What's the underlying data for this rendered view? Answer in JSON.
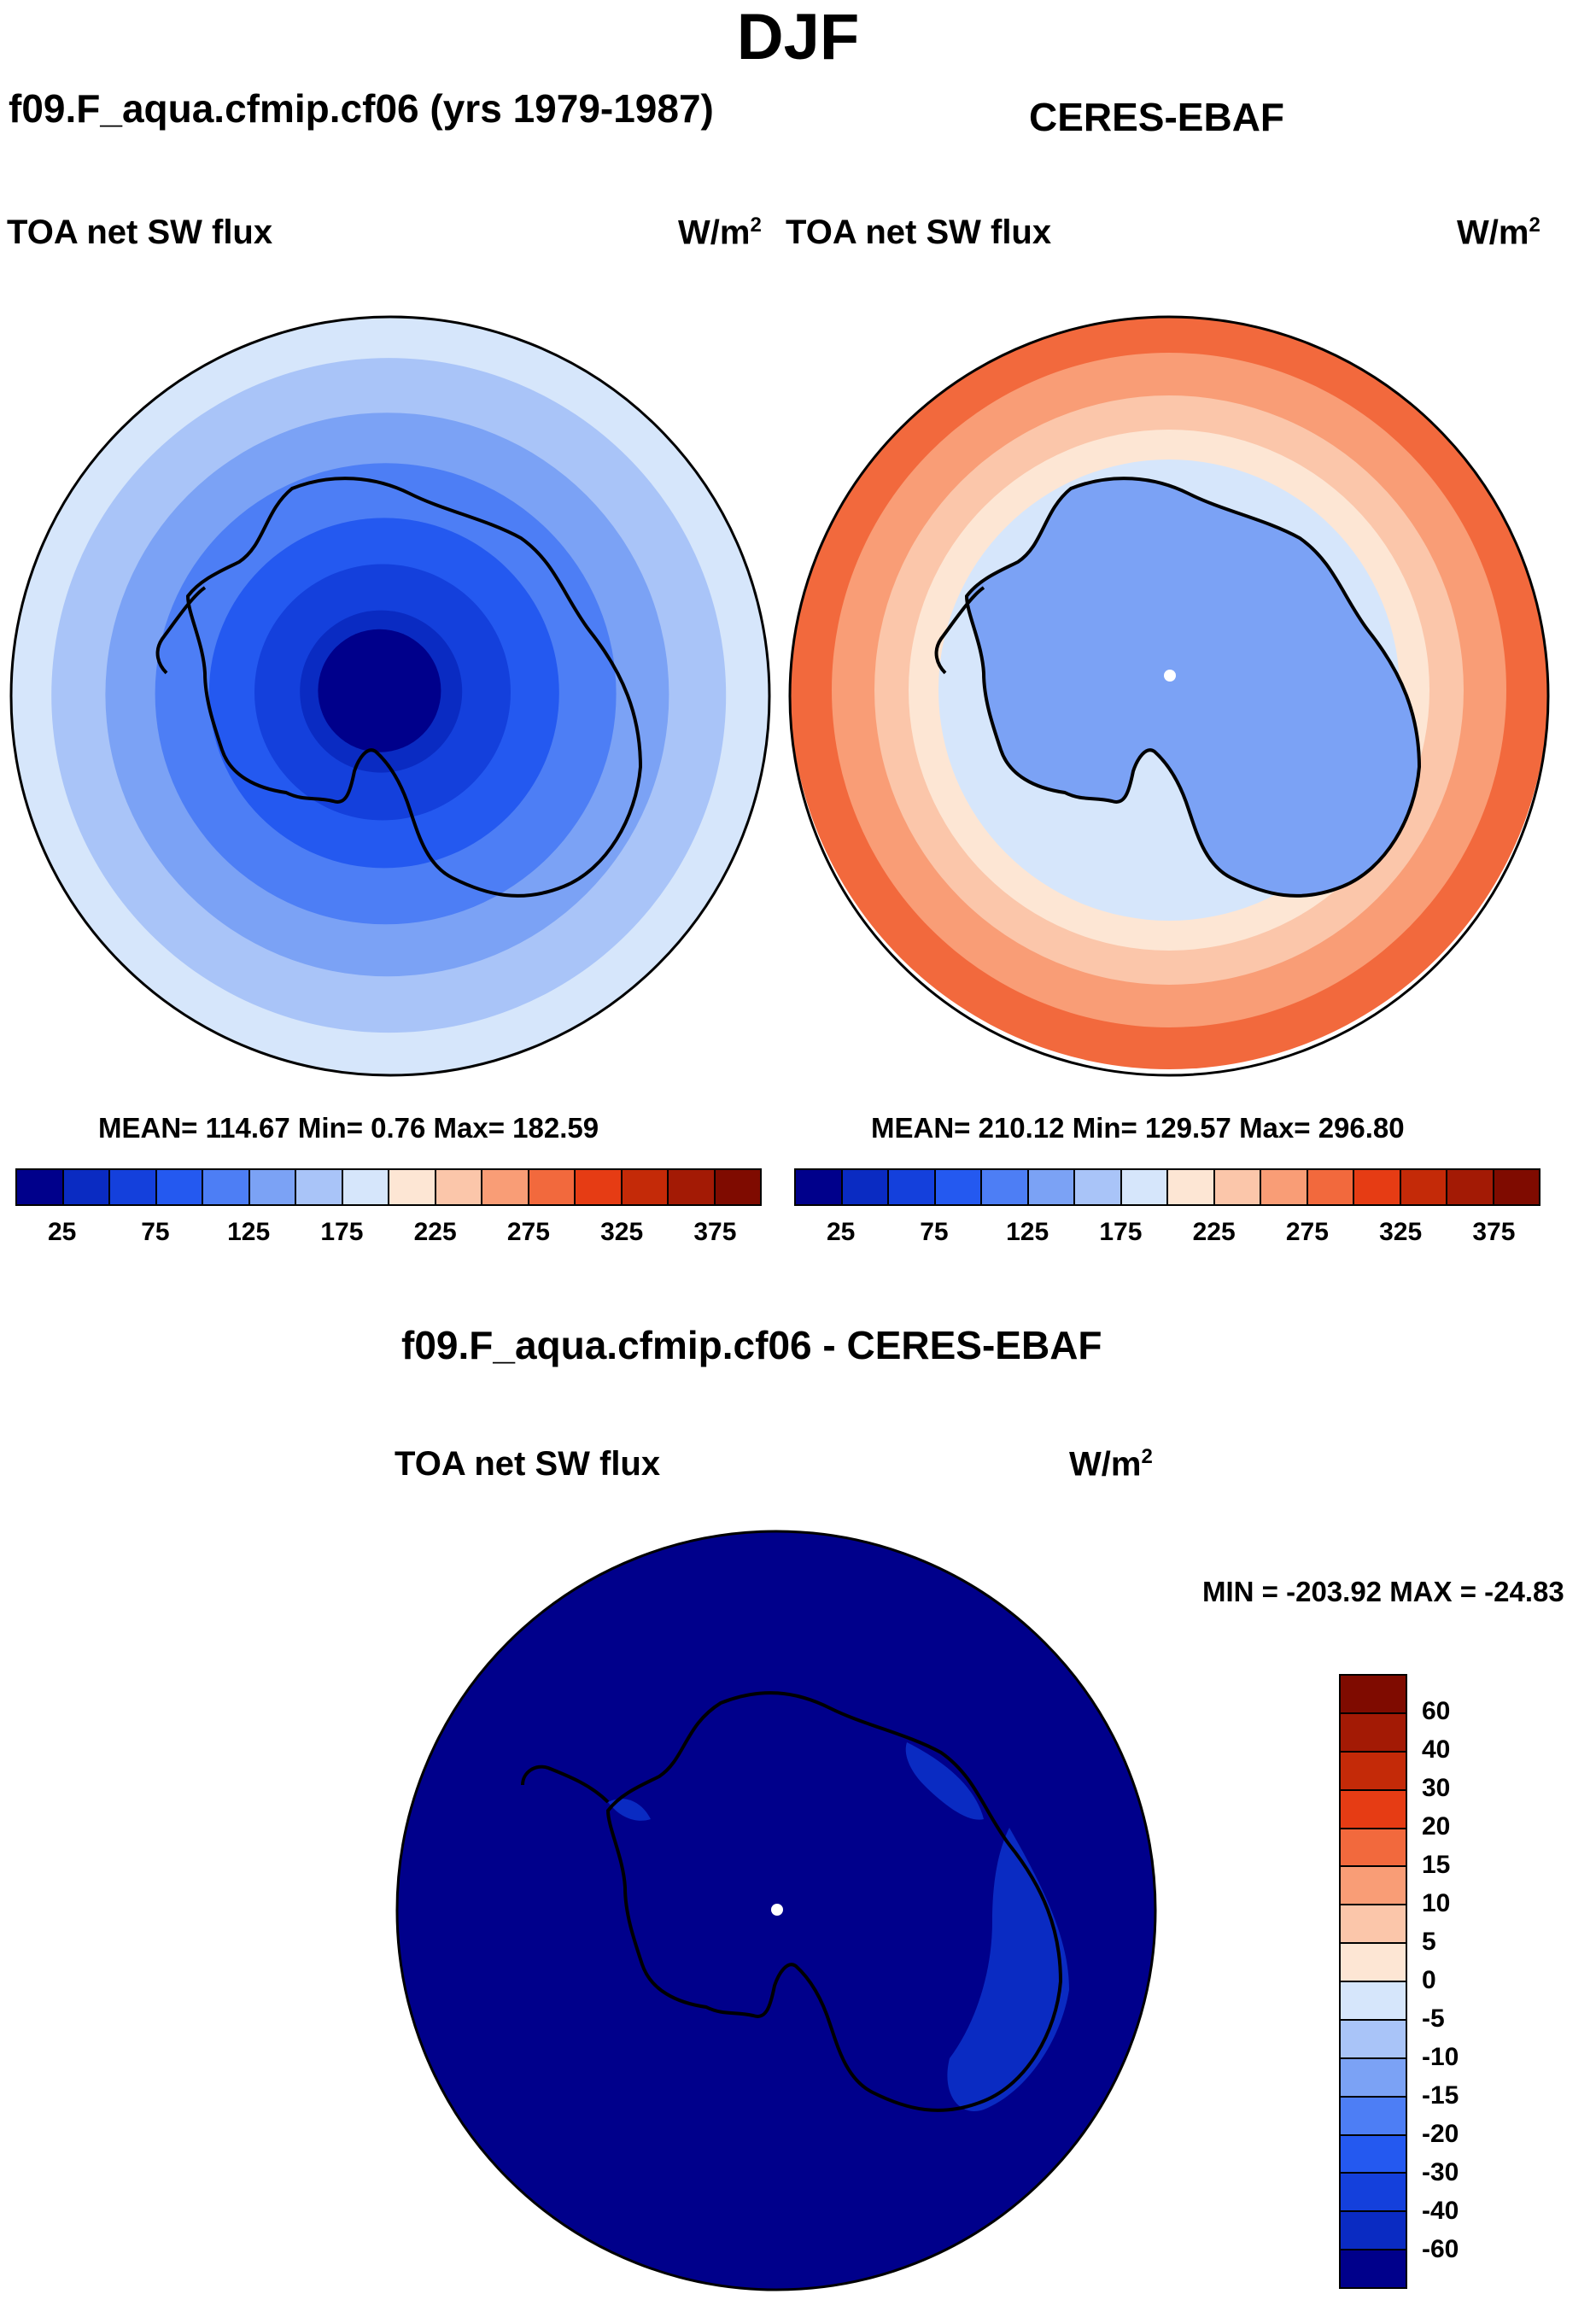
{
  "figure": {
    "season": "DJF"
  },
  "panels": {
    "model": {
      "title": "f09.F_aqua.cfmip.cf06 (yrs 1979-1987)",
      "variable": "TOA net SW flux",
      "units": "W/m",
      "units_exp": "2",
      "stats": "MEAN= 114.67  Min=   0.76  Max= 182.59"
    },
    "obs": {
      "title": "CERES-EBAF",
      "variable": "TOA net SW flux",
      "units": "W/m",
      "units_exp": "2",
      "stats": "MEAN= 210.12  Min= 129.57  Max= 296.80"
    },
    "diff": {
      "title": "f09.F_aqua.cfmip.cf06 - CERES-EBAF",
      "variable": "TOA net SW flux",
      "units": "W/m",
      "units_exp": "2",
      "minmax": "MIN = -203.92 MAX = -24.83"
    }
  },
  "chart_data": [
    {
      "type": "heatmap",
      "projection": "south polar stereographic",
      "title": "f09.F_aqua.cfmip.cf06 (yrs 1979-1987)",
      "variable": "TOA net SW flux",
      "units": "W/m^2",
      "mean": 114.67,
      "min": 0.76,
      "max": 182.59,
      "levels": [
        25,
        50,
        75,
        100,
        125,
        150,
        175,
        200,
        225,
        250,
        275,
        300,
        325,
        350,
        375
      ],
      "colorbar_ticks": [
        "25",
        "75",
        "125",
        "175",
        "225",
        "275",
        "325",
        "375"
      ],
      "colors": [
        "#00008b",
        "#0a2bc2",
        "#1440dc",
        "#2459f0",
        "#4d7ef5",
        "#7ba2f5",
        "#a9c4f8",
        "#d6e6fb",
        "#fde6d4",
        "#fbc6aa",
        "#f99d76",
        "#f2693d",
        "#e63c14",
        "#c42a08",
        "#a31a05",
        "#7f0b00"
      ],
      "bands": [
        {
          "value": 12.5,
          "description": "pole"
        },
        {
          "value": 37.5
        },
        {
          "value": 62.5
        },
        {
          "value": 87.5
        },
        {
          "value": 112.5
        },
        {
          "value": 137.5
        },
        {
          "value": 162.5
        },
        {
          "value": 187.5,
          "description": "outer edge"
        }
      ]
    },
    {
      "type": "heatmap",
      "projection": "south polar stereographic",
      "title": "CERES-EBAF",
      "variable": "TOA net SW flux",
      "units": "W/m^2",
      "mean": 210.12,
      "min": 129.57,
      "max": 296.8,
      "levels": [
        25,
        50,
        75,
        100,
        125,
        150,
        175,
        200,
        225,
        250,
        275,
        300,
        325,
        350,
        375
      ],
      "colorbar_ticks": [
        "25",
        "75",
        "125",
        "175",
        "225",
        "275",
        "325",
        "375"
      ],
      "colors": [
        "#00008b",
        "#0a2bc2",
        "#1440dc",
        "#2459f0",
        "#4d7ef5",
        "#7ba2f5",
        "#a9c4f8",
        "#d6e6fb",
        "#fde6d4",
        "#fbc6aa",
        "#f99d76",
        "#f2693d",
        "#e63c14",
        "#c42a08",
        "#a31a05",
        "#7f0b00"
      ],
      "regions": [
        {
          "name": "Antarctic continent",
          "value": 137.5
        },
        {
          "name": "sea-ice zone",
          "value": 187.5
        },
        {
          "name": "inner ocean ring",
          "value": 212.5
        },
        {
          "name": "mid ocean ring",
          "value": 237.5
        },
        {
          "name": "outer ocean ring",
          "value": 262.5
        },
        {
          "name": "outer edge",
          "value": 287.5
        }
      ]
    },
    {
      "type": "heatmap",
      "projection": "south polar stereographic",
      "title": "f09.F_aqua.cfmip.cf06 - CERES-EBAF",
      "variable": "TOA net SW flux",
      "units": "W/m^2",
      "min": -203.92,
      "max": -24.83,
      "levels": [
        -60,
        -40,
        -30,
        -20,
        -15,
        -10,
        -5,
        0,
        5,
        10,
        15,
        20,
        30,
        40,
        60
      ],
      "colorbar_ticks": [
        "60",
        "40",
        "30",
        "20",
        "15",
        "10",
        "5",
        "0",
        "-5",
        "-10",
        "-15",
        "-20",
        "-30",
        "-40",
        "-60"
      ],
      "colors": [
        "#00008b",
        "#0a2bc2",
        "#1440dc",
        "#2459f0",
        "#4d7ef5",
        "#7ba2f5",
        "#a9c4f8",
        "#d6e6fb",
        "#fde6d4",
        "#fbc6aa",
        "#f99d76",
        "#f2693d",
        "#e63c14",
        "#c42a08",
        "#a31a05",
        "#7f0b00"
      ],
      "regions": [
        {
          "name": "dominant field",
          "value": "< -60"
        },
        {
          "name": "coastal East Antarctica",
          "value": "-60 to -40"
        }
      ]
    }
  ]
}
